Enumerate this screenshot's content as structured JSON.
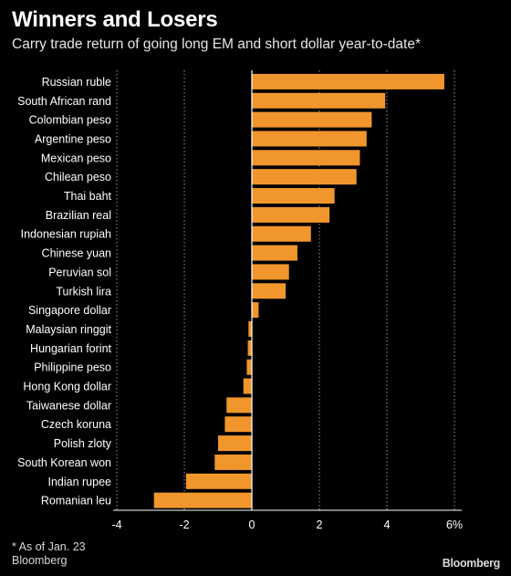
{
  "header": {
    "title": "Winners and Losers",
    "subtitle": "Carry trade return of going long EM and short dollar year-to-date*"
  },
  "footer": {
    "footnote": "* As of Jan. 23",
    "source": "Bloomberg",
    "logo": "Bloomberg"
  },
  "colors": {
    "background": "#000000",
    "bar": "#f0962d",
    "text": "#ffffff",
    "gridline": "#9a9a9a",
    "axis": "#ffffff"
  },
  "chart_data": {
    "type": "bar",
    "orientation": "horizontal",
    "title": "Winners and Losers",
    "subtitle": "Carry trade return of going long EM and short dollar year-to-date*",
    "xlabel": "",
    "ylabel": "",
    "x_unit": "%",
    "xlim": [
      -4,
      6
    ],
    "x_ticks": [
      -4,
      -2,
      0,
      2,
      4,
      6
    ],
    "x_tick_labels": [
      "-4",
      "-2",
      "0",
      "2",
      "4",
      "6%"
    ],
    "gridlines": "dotted vertical at each tick",
    "categories": [
      "Russian ruble",
      "South African rand",
      "Colombian peso",
      "Argentine peso",
      "Mexican peso",
      "Chilean peso",
      "Thai baht",
      "Brazilian real",
      "Indonesian rupiah",
      "Chinese yuan",
      "Peruvian sol",
      "Turkish lira",
      "Singapore dollar",
      "Malaysian ringgit",
      "Hungarian forint",
      "Philippine peso",
      "Hong Kong dollar",
      "Taiwanese dollar",
      "Czech koruna",
      "Polish zloty",
      "South Korean won",
      "Indian rupee",
      "Romanian leu"
    ],
    "values": [
      5.7,
      3.95,
      3.55,
      3.4,
      3.2,
      3.1,
      2.45,
      2.3,
      1.75,
      1.35,
      1.1,
      1.0,
      0.2,
      -0.1,
      -0.12,
      -0.15,
      -0.25,
      -0.75,
      -0.8,
      -1.0,
      -1.1,
      -1.95,
      -2.9
    ]
  }
}
